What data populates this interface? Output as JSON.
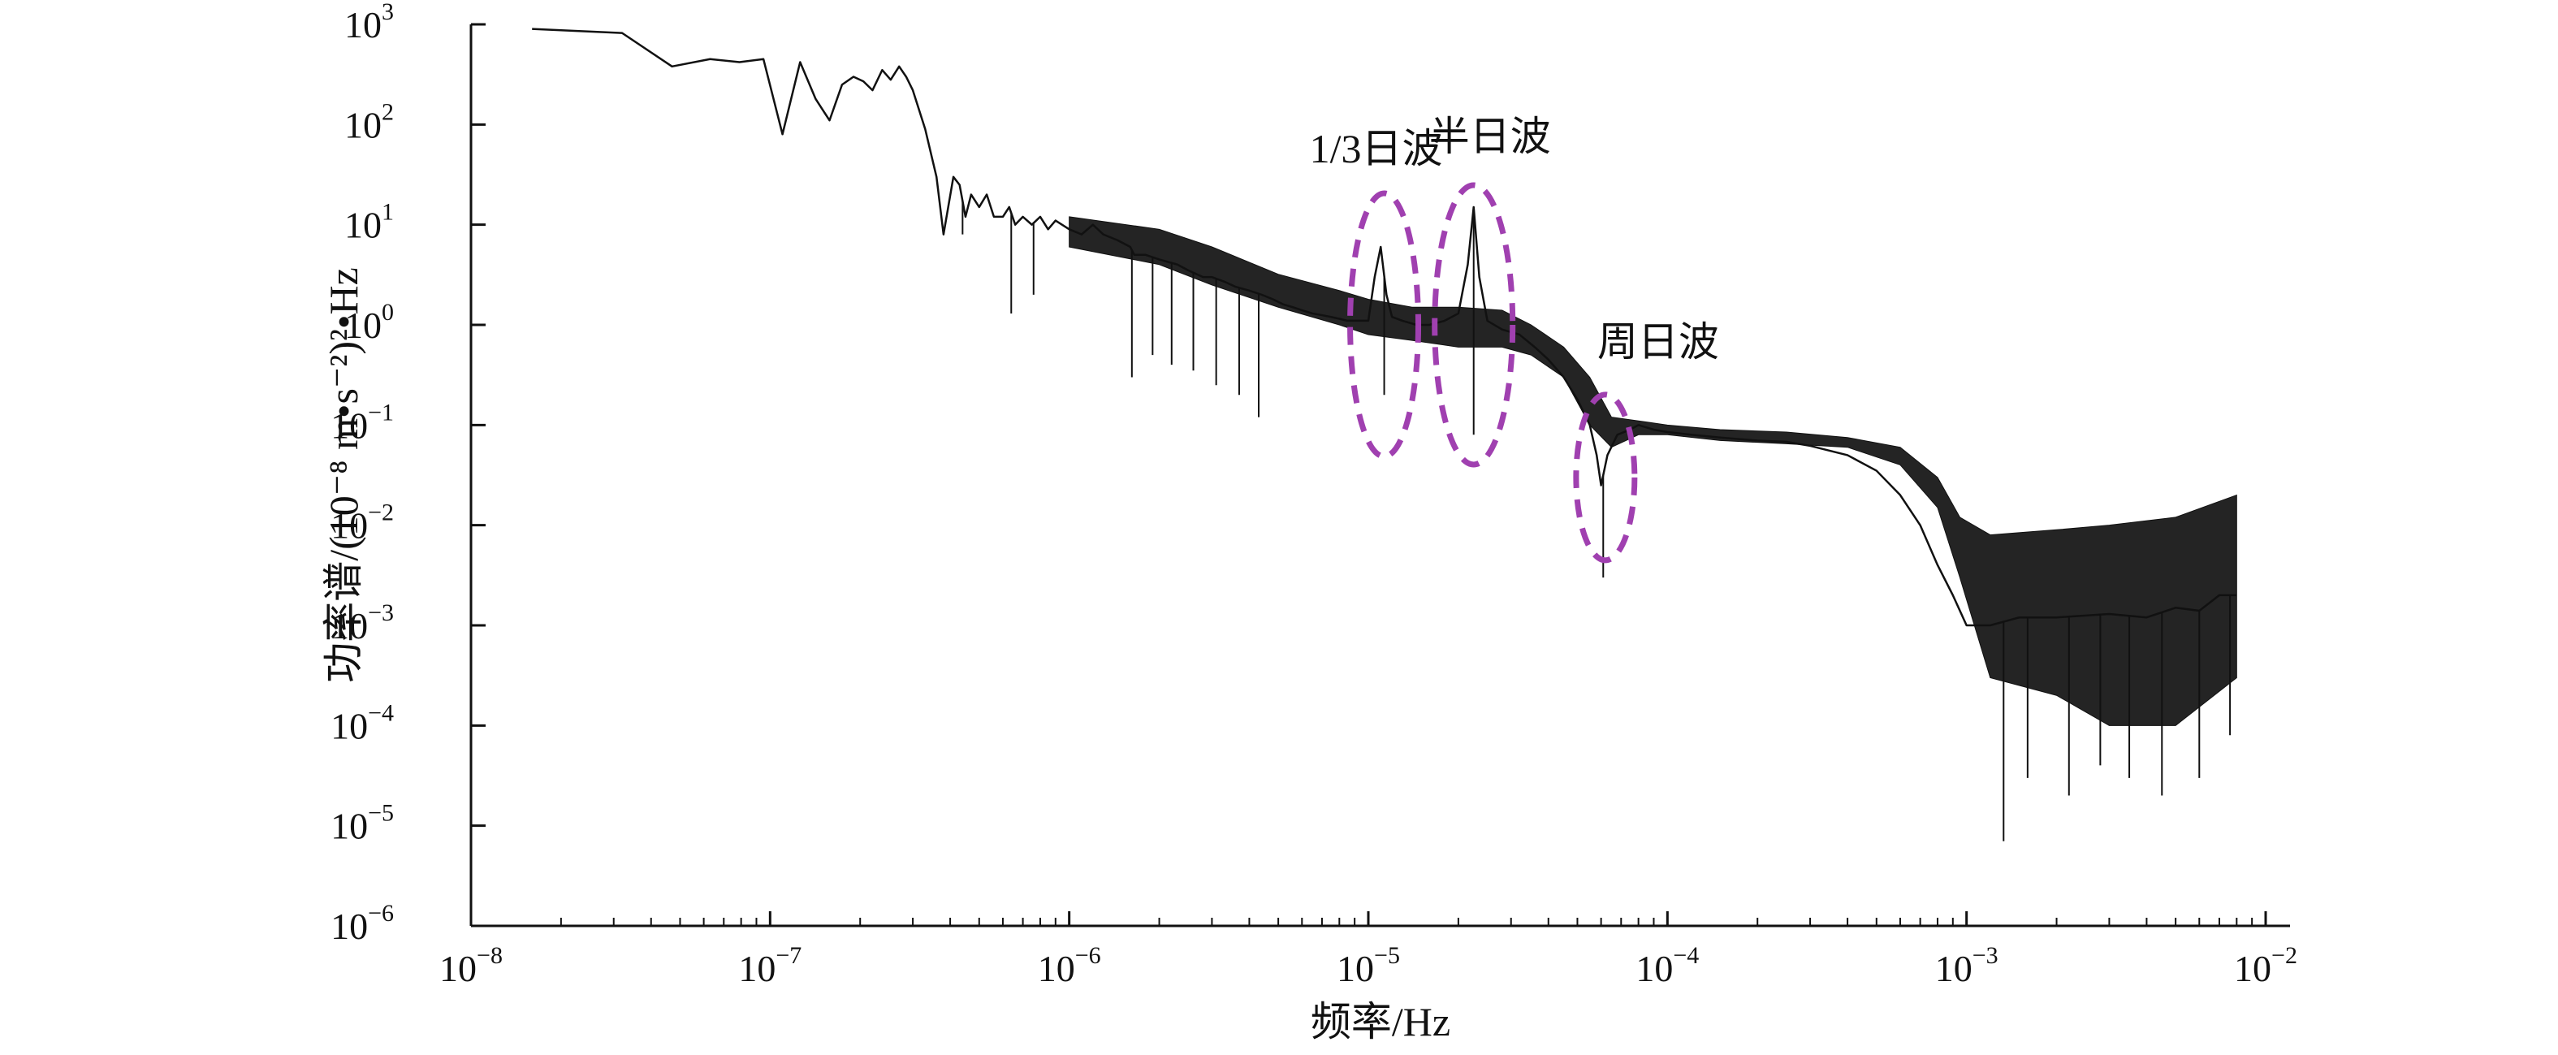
{
  "chart_data": {
    "type": "line",
    "xlabel": "频率/Hz",
    "ylabel": "功率谱/(10⁻⁸ m•s⁻²)²•Hz",
    "xscale": "log",
    "yscale": "log",
    "xlim": [
      1e-08,
      0.01
    ],
    "ylim": [
      1e-06,
      1000
    ],
    "grid": false,
    "x_ticks": [
      {
        "base": "10",
        "exp": "−8"
      },
      {
        "base": "10",
        "exp": "−7"
      },
      {
        "base": "10",
        "exp": "−6"
      },
      {
        "base": "10",
        "exp": "−5"
      },
      {
        "base": "10",
        "exp": "−4"
      },
      {
        "base": "10",
        "exp": "−3"
      },
      {
        "base": "10",
        "exp": "−2"
      }
    ],
    "y_ticks": [
      {
        "base": "10",
        "exp": "−6"
      },
      {
        "base": "10",
        "exp": "−5"
      },
      {
        "base": "10",
        "exp": "−4"
      },
      {
        "base": "10",
        "exp": "−3"
      },
      {
        "base": "10",
        "exp": "−2"
      },
      {
        "base": "10",
        "exp": "−1"
      },
      {
        "base": "10",
        "exp": "0",
        "label": "10⁰"
      },
      {
        "base": "10",
        "exp": "1"
      },
      {
        "base": "10",
        "exp": "2"
      },
      {
        "base": "10",
        "exp": "3"
      }
    ],
    "series_color": "#111111",
    "annotation_color": "#a040b0",
    "series": [
      {
        "x": [
          1.6e-08,
          3.2e-08,
          4.7e-08,
          6.3e-08,
          7.9e-08,
          9.5e-08,
          1.1e-07,
          1.26e-07,
          1.42e-07,
          1.58e-07,
          1.74e-07,
          1.9e-07,
          2.05e-07,
          2.2e-07,
          2.37e-07,
          2.53e-07,
          2.7e-07,
          2.85e-07,
          3e-07,
          3.3e-07,
          3.6e-07,
          3.8e-07,
          4.1e-07,
          4.3e-07,
          4.5e-07,
          4.7e-07,
          5e-07,
          5.3e-07,
          5.6e-07,
          6e-07,
          6.3e-07,
          6.6e-07,
          7e-07,
          7.5e-07,
          8e-07,
          8.5e-07,
          9e-07,
          1e-06,
          1.1e-06,
          1.2e-06,
          1.3e-06,
          1.45e-06,
          1.6e-06,
          1.65e-06,
          1.8e-06,
          2e-06,
          2.3e-06,
          2.5e-06,
          2.8e-06,
          3e-06,
          3.3e-06,
          3.6e-06,
          4e-06,
          4.4e-06,
          4.8e-06,
          5.2e-06,
          5.6e-06,
          6e-06,
          6.5e-06,
          7e-06,
          7.5e-06,
          8e-06,
          8.5e-06,
          9e-06,
          9.5e-06,
          1e-05,
          1.05e-05,
          1.1e-05,
          1.15e-05,
          1.2e-05,
          1.3e-05,
          1.45e-05,
          1.6e-05,
          1.8e-05,
          2e-05,
          2.15e-05,
          2.25e-05,
          2.35e-05,
          2.5e-05,
          2.8e-05,
          3.2e-05,
          3.6e-05,
          4e-05,
          4.5e-05,
          5e-05,
          5.5e-05,
          5.8e-05,
          6e-05,
          6.3e-05,
          6.8e-05,
          7.5e-05,
          8e-05,
          9e-05,
          0.0001,
          0.00012,
          0.00015,
          0.0002,
          0.00025,
          0.0003,
          0.0004,
          0.0005,
          0.0006,
          0.0007,
          0.0008,
          0.0009,
          0.001,
          0.0012,
          0.0015,
          0.002,
          0.003,
          0.004,
          0.005,
          0.006,
          0.007,
          0.008
        ],
        "y": [
          900,
          820,
          380,
          450,
          420,
          450,
          80,
          420,
          180,
          110,
          250,
          300,
          270,
          220,
          350,
          280,
          380,
          300,
          220,
          90,
          30,
          8,
          30,
          25,
          12,
          20,
          15,
          20,
          12,
          12,
          15,
          10,
          12,
          10,
          12,
          9,
          11,
          9,
          8,
          10,
          8,
          7,
          6,
          5,
          5,
          4.5,
          4,
          3.5,
          3,
          3,
          2.7,
          2.4,
          2.2,
          2.0,
          1.8,
          1.6,
          1.5,
          1.4,
          1.3,
          1.25,
          1.2,
          1.15,
          1.1,
          1.1,
          1.1,
          1.1,
          3,
          6,
          2,
          1.2,
          1.1,
          1.0,
          1.0,
          1.1,
          1.3,
          4,
          15,
          3,
          1.1,
          0.9,
          0.8,
          0.6,
          0.45,
          0.3,
          0.18,
          0.1,
          0.05,
          0.025,
          0.05,
          0.08,
          0.09,
          0.1,
          0.09,
          0.085,
          0.08,
          0.075,
          0.07,
          0.068,
          0.062,
          0.05,
          0.035,
          0.02,
          0.01,
          0.004,
          0.002,
          0.001,
          0.001,
          0.0012,
          0.0012,
          0.0013,
          0.0012,
          0.0015,
          0.0014,
          0.002,
          0.002
        ],
        "band_x": [
          1e-06,
          2e-06,
          3e-06,
          5e-06,
          8e-06,
          1e-05,
          1.4e-05,
          2e-05,
          2.8e-05,
          3.5e-05,
          4.5e-05,
          5.5e-05,
          6.5e-05,
          8e-05,
          0.0001,
          0.00015,
          0.00025,
          0.0004,
          0.0006,
          0.0008,
          0.00095,
          0.0012,
          0.002,
          0.003,
          0.005,
          0.008
        ],
        "band_upper": [
          12,
          9,
          6,
          3.2,
          2.2,
          1.8,
          1.5,
          1.5,
          1.4,
          1.0,
          0.6,
          0.3,
          0.12,
          0.11,
          0.1,
          0.09,
          0.085,
          0.075,
          0.06,
          0.03,
          0.012,
          0.008,
          0.009,
          0.01,
          0.012,
          0.02
        ],
        "band_lower": [
          6,
          4,
          2.5,
          1.5,
          1.0,
          0.8,
          0.7,
          0.6,
          0.6,
          0.5,
          0.3,
          0.1,
          0.06,
          0.08,
          0.08,
          0.07,
          0.065,
          0.06,
          0.04,
          0.015,
          0.003,
          0.0003,
          0.0002,
          0.0001,
          0.0001,
          0.0003
        ],
        "spike_x": [
          4.4e-07,
          6.4e-07,
          7.6e-07,
          1.62e-06,
          1.9e-06,
          2.2e-06,
          2.6e-06,
          3.1e-06,
          3.7e-06,
          4.3e-06,
          1.13e-05,
          2.25e-05,
          6.1e-05,
          0.00133,
          0.0016,
          0.0022,
          0.0028,
          0.0035,
          0.0045,
          0.006,
          0.0076
        ],
        "spike_y": [
          8,
          1.3,
          2.0,
          0.3,
          0.5,
          0.4,
          0.35,
          0.25,
          0.2,
          0.12,
          0.2,
          0.08,
          0.003,
          7e-06,
          3e-05,
          2e-05,
          4e-05,
          3e-05,
          2e-05,
          3e-05,
          8e-05
        ]
      }
    ],
    "annotations": [
      {
        "text": "1/3日波",
        "x": 1.13e-05,
        "y": 1.0
      },
      {
        "text": "半日波",
        "x": 2.25e-05,
        "y": 1.0
      },
      {
        "text": "周日波",
        "x": 6.2e-05,
        "y": 0.03
      }
    ]
  }
}
